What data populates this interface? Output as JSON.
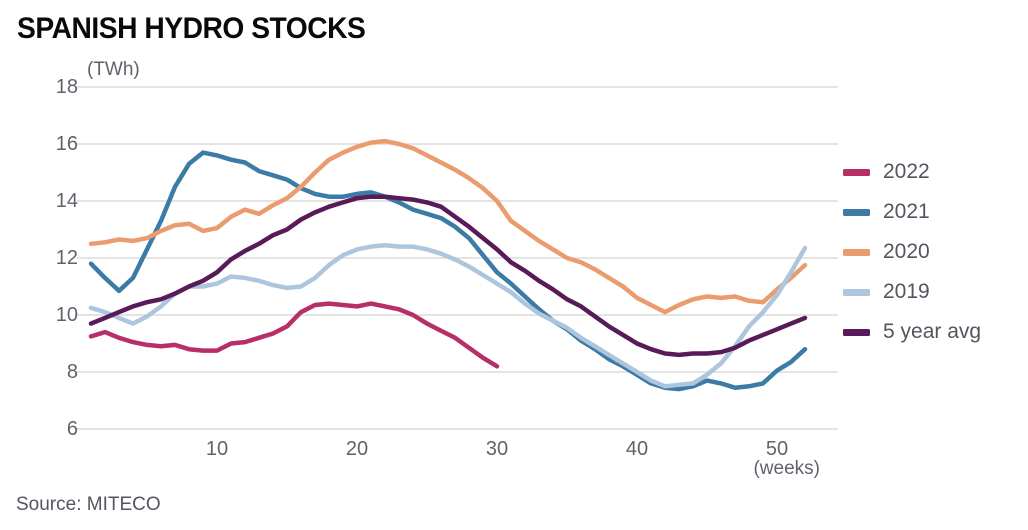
{
  "header": {
    "title": "SPANISH HYDRO STOCKS",
    "unit_label": "(TWh)"
  },
  "source_text": "Source: MITECO",
  "colors": {
    "grid": "#dcdcdc",
    "axis_text": "#62626c",
    "legend_text": "#55555f",
    "title_text": "#0a0a0a"
  },
  "chart_data": {
    "type": "line",
    "title": "SPANISH HYDRO STOCKS",
    "ylabel": "(TWh)",
    "xlabel": "(weeks)",
    "xlim": [
      1,
      52
    ],
    "ylim": [
      6,
      18
    ],
    "x_ticks": [
      10,
      20,
      30,
      40,
      50
    ],
    "y_ticks": [
      18,
      16,
      14,
      12,
      10,
      8,
      6
    ],
    "grid": "horizontal",
    "legend_position": "right",
    "x_unit": "week of year",
    "series": [
      {
        "name": "2022",
        "color": "#b72f68",
        "x_start": 1,
        "values": [
          9.25,
          9.4,
          9.2,
          9.05,
          8.95,
          8.9,
          8.95,
          8.8,
          8.75,
          8.75,
          9.0,
          9.05,
          9.2,
          9.35,
          9.6,
          10.1,
          10.35,
          10.4,
          10.35,
          10.3,
          10.4,
          10.3,
          10.2,
          10.0,
          9.7,
          9.45,
          9.2,
          8.85,
          8.5,
          8.2
        ]
      },
      {
        "name": "2021",
        "color": "#3b7ba6",
        "x_start": 1,
        "values": [
          11.8,
          11.3,
          10.85,
          11.3,
          12.3,
          13.3,
          14.5,
          15.3,
          15.7,
          15.6,
          15.45,
          15.35,
          15.05,
          14.9,
          14.75,
          14.45,
          14.25,
          14.15,
          14.15,
          14.25,
          14.3,
          14.15,
          13.95,
          13.7,
          13.55,
          13.4,
          13.1,
          12.7,
          12.1,
          11.5,
          11.1,
          10.65,
          10.2,
          9.8,
          9.5,
          9.1,
          8.8,
          8.45,
          8.2,
          7.9,
          7.6,
          7.45,
          7.4,
          7.5,
          7.7,
          7.6,
          7.45,
          7.5,
          7.6,
          8.05,
          8.35,
          8.8
        ]
      },
      {
        "name": "2020",
        "color": "#ea9c6e",
        "x_start": 1,
        "values": [
          12.5,
          12.55,
          12.65,
          12.6,
          12.7,
          12.95,
          13.15,
          13.2,
          12.95,
          13.05,
          13.45,
          13.7,
          13.55,
          13.85,
          14.1,
          14.5,
          15.0,
          15.45,
          15.7,
          15.9,
          16.05,
          16.1,
          16.0,
          15.85,
          15.6,
          15.35,
          15.1,
          14.8,
          14.45,
          14.0,
          13.3,
          12.95,
          12.6,
          12.3,
          12.0,
          11.85,
          11.6,
          11.3,
          11.0,
          10.6,
          10.35,
          10.1,
          10.35,
          10.55,
          10.65,
          10.6,
          10.65,
          10.5,
          10.45,
          10.9,
          11.3,
          11.75
        ]
      },
      {
        "name": "2019",
        "color": "#adc6de",
        "x_start": 1,
        "values": [
          10.25,
          10.1,
          9.9,
          9.7,
          9.95,
          10.3,
          10.75,
          11.0,
          11.0,
          11.1,
          11.35,
          11.3,
          11.2,
          11.05,
          10.95,
          11.0,
          11.3,
          11.75,
          12.1,
          12.3,
          12.4,
          12.45,
          12.4,
          12.4,
          12.3,
          12.15,
          11.95,
          11.7,
          11.4,
          11.1,
          10.8,
          10.4,
          10.05,
          9.8,
          9.55,
          9.2,
          8.9,
          8.6,
          8.3,
          8.0,
          7.7,
          7.5,
          7.55,
          7.6,
          7.9,
          8.3,
          8.9,
          9.6,
          10.1,
          10.7,
          11.5,
          12.35
        ]
      },
      {
        "name": "5 year avg",
        "color": "#581a58",
        "x_start": 1,
        "values": [
          9.7,
          9.9,
          10.1,
          10.3,
          10.45,
          10.55,
          10.75,
          11.0,
          11.2,
          11.5,
          11.95,
          12.25,
          12.5,
          12.8,
          13.0,
          13.35,
          13.6,
          13.8,
          13.95,
          14.1,
          14.15,
          14.15,
          14.1,
          14.05,
          13.95,
          13.8,
          13.45,
          13.1,
          12.7,
          12.3,
          11.85,
          11.55,
          11.2,
          10.9,
          10.55,
          10.3,
          9.95,
          9.6,
          9.3,
          9.0,
          8.8,
          8.65,
          8.6,
          8.65,
          8.65,
          8.7,
          8.85,
          9.1,
          9.3,
          9.5,
          9.7,
          9.9
        ]
      }
    ]
  }
}
